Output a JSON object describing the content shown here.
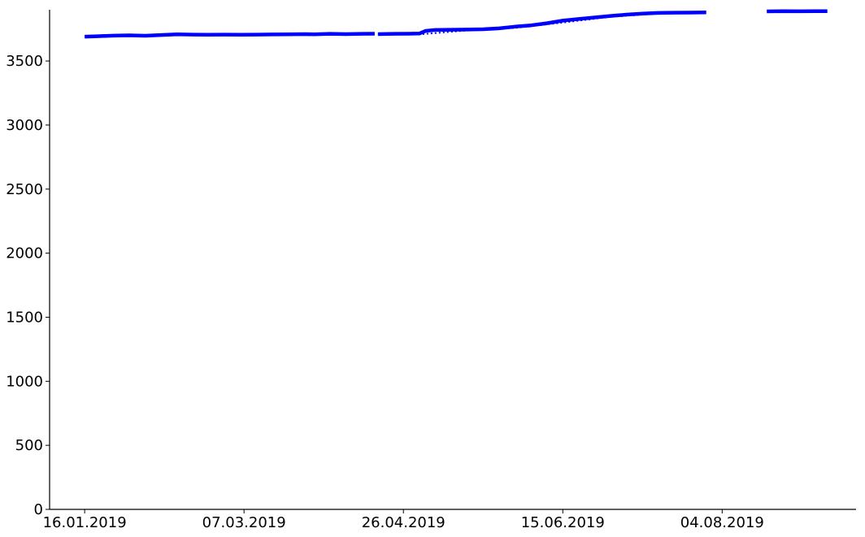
{
  "chart_data": {
    "type": "line",
    "title": "",
    "xlabel": "",
    "ylabel": "",
    "x_axis": {
      "kind": "date",
      "range": [
        "2019-01-05",
        "2019-09-15"
      ],
      "ticks": [
        {
          "date": "2019-01-16",
          "label": "16.01.2019"
        },
        {
          "date": "2019-03-07",
          "label": "07.03.2019"
        },
        {
          "date": "2019-04-26",
          "label": "26.04.2019"
        },
        {
          "date": "2019-06-15",
          "label": "15.06.2019"
        },
        {
          "date": "2019-08-04",
          "label": "04.08.2019"
        }
      ]
    },
    "y_axis": {
      "range": [
        0,
        3900
      ],
      "ticks": [
        0,
        500,
        1000,
        1500,
        2000,
        2500,
        3000,
        3500
      ]
    },
    "grid": false,
    "legend": "none",
    "series": [
      {
        "style": "solid",
        "color": "#0000ff",
        "segments": [
          [
            [
              "2019-01-16",
              3690
            ],
            [
              "2019-01-20",
              3693
            ],
            [
              "2019-01-25",
              3698
            ],
            [
              "2019-01-30",
              3700
            ],
            [
              "2019-02-04",
              3697
            ],
            [
              "2019-02-09",
              3703
            ],
            [
              "2019-02-14",
              3708
            ],
            [
              "2019-02-19",
              3706
            ],
            [
              "2019-02-24",
              3705
            ],
            [
              "2019-03-01",
              3706
            ],
            [
              "2019-03-06",
              3705
            ],
            [
              "2019-03-11",
              3706
            ],
            [
              "2019-03-16",
              3707
            ],
            [
              "2019-03-21",
              3708
            ],
            [
              "2019-03-26",
              3710
            ],
            [
              "2019-03-29",
              3708
            ],
            [
              "2019-04-03",
              3712
            ],
            [
              "2019-04-08",
              3710
            ],
            [
              "2019-04-13",
              3712
            ],
            [
              "2019-04-17",
              3713
            ]
          ],
          [
            [
              "2019-04-18",
              3710
            ],
            [
              "2019-04-23",
              3712
            ],
            [
              "2019-04-28",
              3713
            ],
            [
              "2019-05-01",
              3714
            ],
            [
              "2019-05-03",
              3735
            ],
            [
              "2019-05-06",
              3742
            ],
            [
              "2019-05-11",
              3744
            ],
            [
              "2019-05-16",
              3745
            ],
            [
              "2019-05-21",
              3748
            ],
            [
              "2019-05-26",
              3755
            ],
            [
              "2019-05-31",
              3768
            ],
            [
              "2019-06-05",
              3778
            ],
            [
              "2019-06-10",
              3795
            ],
            [
              "2019-06-15",
              3815
            ],
            [
              "2019-06-20",
              3828
            ],
            [
              "2019-06-25",
              3840
            ],
            [
              "2019-06-30",
              3852
            ],
            [
              "2019-07-05",
              3862
            ],
            [
              "2019-07-10",
              3870
            ],
            [
              "2019-07-15",
              3875
            ],
            [
              "2019-07-20",
              3877
            ],
            [
              "2019-07-25",
              3878
            ],
            [
              "2019-07-30",
              3879
            ]
          ],
          [
            [
              "2019-08-18",
              3887
            ],
            [
              "2019-08-23",
              3889
            ],
            [
              "2019-08-28",
              3888
            ],
            [
              "2019-09-02",
              3889
            ],
            [
              "2019-09-06",
              3889
            ]
          ]
        ]
      },
      {
        "style": "dotted",
        "color": "#0000ff",
        "segments": [
          [
            [
              "2019-04-18",
              3706
            ],
            [
              "2019-05-01",
              3708
            ],
            [
              "2019-05-16",
              3738
            ],
            [
              "2019-05-31",
              3758
            ],
            [
              "2019-06-15",
              3800
            ],
            [
              "2019-06-30",
              3845
            ],
            [
              "2019-07-15",
              3870
            ],
            [
              "2019-07-30",
              3876
            ]
          ]
        ]
      }
    ]
  }
}
